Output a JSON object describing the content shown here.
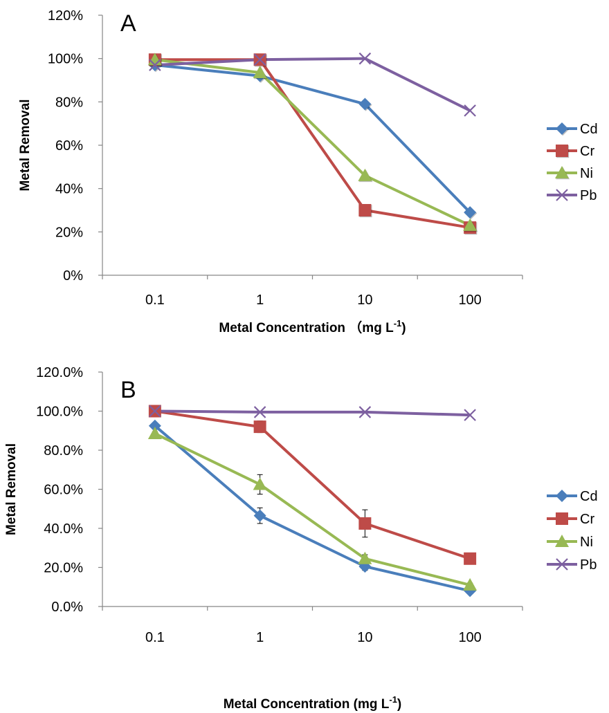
{
  "chart_data": [
    {
      "type": "line",
      "panel_label": "A",
      "categories": [
        "0.1",
        "1",
        "10",
        "100"
      ],
      "xlabel": "Metal Concentration （mg L",
      "xlabel_sup": "-1",
      "xlabel_close": ")",
      "ylabel": "Metal Removal",
      "ylim": [
        0,
        1.2
      ],
      "yticks": [
        0,
        0.2,
        0.4,
        0.6,
        0.8,
        1.0,
        1.2
      ],
      "ytick_labels": [
        "0%",
        "20%",
        "40%",
        "60%",
        "80%",
        "100%",
        "120%"
      ],
      "grid": false,
      "legend_position": "right",
      "series": [
        {
          "name": "Cd",
          "color": "#4A7EBB",
          "marker": "diamond",
          "values": [
            0.97,
            0.92,
            0.79,
            0.29
          ]
        },
        {
          "name": "Cr",
          "color": "#BE4B48",
          "marker": "square",
          "values": [
            0.995,
            0.995,
            0.3,
            0.22
          ]
        },
        {
          "name": "Ni",
          "color": "#98B954",
          "marker": "triangle",
          "values": [
            0.995,
            0.935,
            0.46,
            0.23
          ]
        },
        {
          "name": "Pb",
          "color": "#7D60A0",
          "marker": "x",
          "values": [
            0.97,
            0.995,
            1.0,
            0.76
          ]
        }
      ]
    },
    {
      "type": "line",
      "panel_label": "B",
      "categories": [
        "0.1",
        "1",
        "10",
        "100"
      ],
      "xlabel": "Metal Concentration (mg L",
      "xlabel_sup": "-1",
      "xlabel_close": ")",
      "ylabel": "Metal Removal",
      "ylim": [
        0,
        1.2
      ],
      "yticks": [
        0,
        0.2,
        0.4,
        0.6,
        0.8,
        1.0,
        1.2
      ],
      "ytick_labels": [
        "0.0%",
        "20.0%",
        "40.0%",
        "60.0%",
        "80.0%",
        "100.0%",
        "120.0%"
      ],
      "grid": false,
      "legend_position": "right",
      "series": [
        {
          "name": "Cd",
          "color": "#4A7EBB",
          "marker": "diamond",
          "values": [
            0.925,
            0.465,
            0.205,
            0.08
          ],
          "errors": [
            0.01,
            0.04,
            0.02,
            0.01
          ]
        },
        {
          "name": "Cr",
          "color": "#BE4B48",
          "marker": "square",
          "values": [
            1.0,
            0.92,
            0.425,
            0.245
          ],
          "errors": [
            0.005,
            0.03,
            0.07,
            0.005
          ]
        },
        {
          "name": "Ni",
          "color": "#98B954",
          "marker": "triangle",
          "values": [
            0.885,
            0.625,
            0.245,
            0.11
          ],
          "errors": [
            0.01,
            0.05,
            0.02,
            0.01
          ]
        },
        {
          "name": "Pb",
          "color": "#7D60A0",
          "marker": "x",
          "values": [
            1.0,
            0.995,
            0.995,
            0.98
          ],
          "errors": [
            0,
            0,
            0,
            0
          ]
        }
      ]
    }
  ]
}
